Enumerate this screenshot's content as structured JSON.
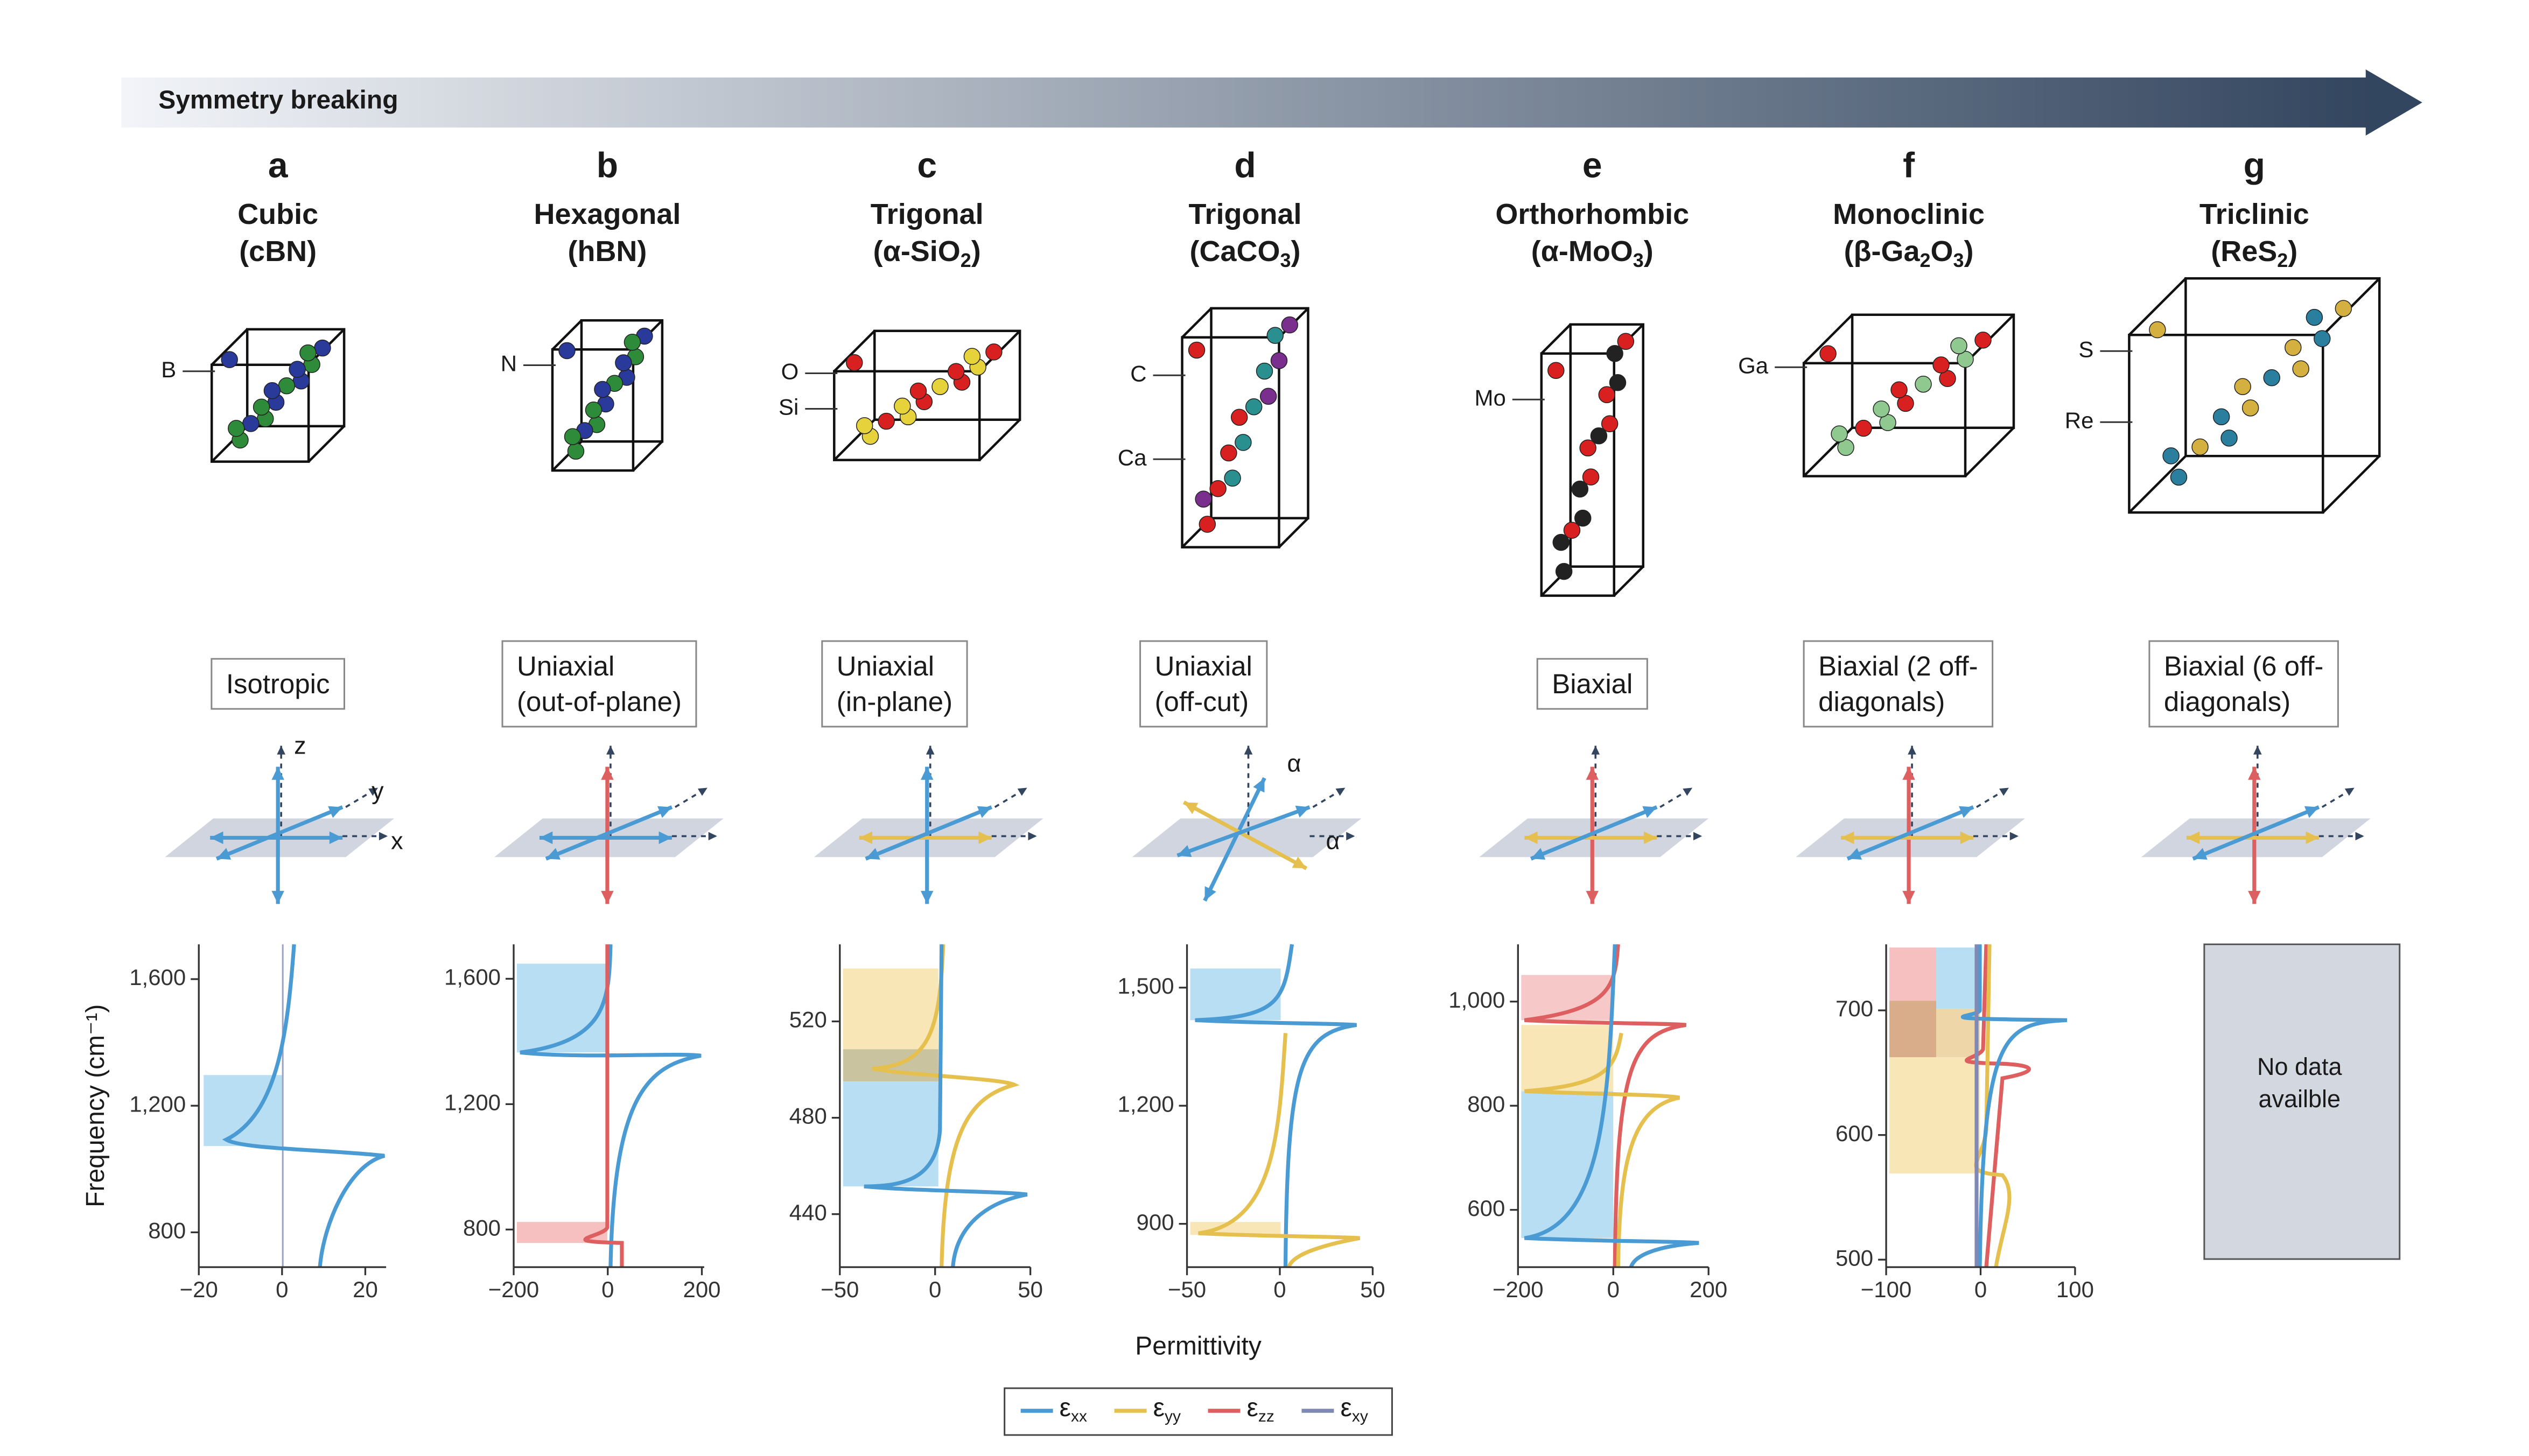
{
  "header": {
    "arrow_label": "Symmetry breaking"
  },
  "panels": [
    {
      "letter": "a",
      "name": "Cubic",
      "formula": [
        "(cBN)"
      ],
      "atoms": [
        "B"
      ],
      "symmetry": [
        "Isotropic"
      ],
      "axes": [
        "z",
        "y",
        "x"
      ],
      "chart": {
        "xlim": [
          -20,
          25
        ],
        "ylim": [
          690,
          1710
        ],
        "xticks": [
          {
            "value": -20,
            "label": "−20"
          },
          0,
          20
        ],
        "yticks": [
          {
            "value": 800,
            "label": "800"
          },
          {
            "value": 1200,
            "label": "1,200"
          },
          {
            "value": 1600,
            "label": "1,600"
          }
        ]
      }
    },
    {
      "letter": "b",
      "name": "Hexagonal",
      "formula": [
        "(hBN)"
      ],
      "atoms": [
        "N"
      ],
      "symmetry": [
        "Uniaxial",
        "(out-of-plane)"
      ],
      "chart": {
        "xlim": [
          -200,
          205
        ],
        "ylim": [
          680,
          1710
        ],
        "xticks": [
          {
            "value": -200,
            "label": "−200"
          },
          0,
          200
        ],
        "yticks": [
          800,
          {
            "value": 1200,
            "label": "1,200"
          },
          {
            "value": 1600,
            "label": "1,600"
          }
        ]
      }
    },
    {
      "letter": "c",
      "name": "Trigonal",
      "formula": [
        "(α-SiO",
        "2",
        ")"
      ],
      "atoms": [
        "O",
        "Si"
      ],
      "symmetry": [
        "Uniaxial",
        "(in-plane)"
      ],
      "chart": {
        "xlim": [
          -50,
          50
        ],
        "ylim": [
          418,
          552
        ],
        "xticks": [
          {
            "value": -50,
            "label": "−50"
          },
          0,
          50
        ],
        "yticks": [
          440,
          480,
          520
        ]
      }
    },
    {
      "letter": "d",
      "name": "Trigonal",
      "formula": [
        "(CaCO",
        "3",
        ")"
      ],
      "atoms": [
        "C",
        "Ca"
      ],
      "symmetry": [
        "Uniaxial",
        "(off-cut)"
      ],
      "axes": [
        "α",
        "α"
      ],
      "chart": {
        "xlim": [
          -50,
          50
        ],
        "ylim": [
          790,
          1610
        ],
        "xticks": [
          {
            "value": -50,
            "label": "−50"
          },
          0,
          50
        ],
        "yticks": [
          900,
          {
            "value": 1200,
            "label": "1,200"
          },
          {
            "value": 1500,
            "label": "1,500"
          }
        ]
      }
    },
    {
      "letter": "e",
      "name": "Orthorhombic",
      "formula": [
        "(α-MoO",
        "3",
        ")"
      ],
      "atoms": [
        "Mo"
      ],
      "symmetry": [
        "Biaxial"
      ],
      "chart": {
        "xlim": [
          -200,
          200
        ],
        "ylim": [
          490,
          1110
        ],
        "xticks": [
          {
            "value": -200,
            "label": "−200"
          },
          0,
          200
        ],
        "yticks": [
          600,
          800,
          {
            "value": 1000,
            "label": "1,000"
          }
        ]
      }
    },
    {
      "letter": "f",
      "name": "Monoclinic",
      "formula": [
        "(β-Ga",
        "2",
        "O",
        "3",
        ")"
      ],
      "atoms": [
        "Ga"
      ],
      "symmetry": [
        "Biaxial (2 off-",
        "diagonals)"
      ],
      "chart": {
        "xlim": [
          -100,
          100
        ],
        "ylim": [
          494,
          753
        ],
        "xticks": [
          {
            "value": -100,
            "label": "−100"
          },
          0,
          100
        ],
        "yticks": [
          500,
          600,
          700
        ]
      }
    },
    {
      "letter": "g",
      "name": "Triclinic",
      "formula": [
        "(ReS",
        "2",
        ")"
      ],
      "atoms": [
        "S",
        "Re"
      ],
      "symmetry": [
        "Biaxial (6 off-",
        "diagonals)"
      ]
    }
  ],
  "no_data": [
    "No data",
    "availble"
  ],
  "y_label": "Frequency (cm⁻¹)",
  "x_label": "Permittivity",
  "legend": [
    {
      "symbol": "ε",
      "sub": "xx",
      "color": "#4a9ad3"
    },
    {
      "symbol": "ε",
      "sub": "yy",
      "color": "#e6c04e"
    },
    {
      "symbol": "ε",
      "sub": "zz",
      "color": "#dd5f5f"
    },
    {
      "symbol": "ε",
      "sub": "xy",
      "color": "#8089b5"
    }
  ]
}
